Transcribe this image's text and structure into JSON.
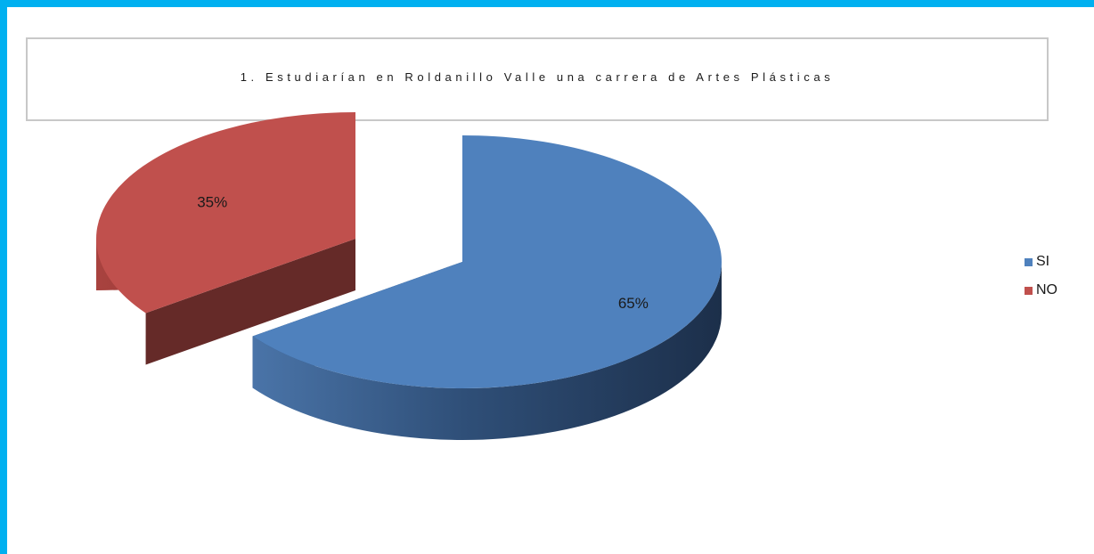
{
  "chart_data": {
    "type": "pie",
    "title": "1. Estudiarían en Roldanillo Valle una carrera de Artes Plásticas",
    "categories": [
      "SI",
      "NO"
    ],
    "values": [
      65,
      35
    ],
    "value_labels": [
      "65%",
      "35%"
    ],
    "colors": [
      "#4f81bd",
      "#c0504d"
    ],
    "legend_position": "right",
    "style": "3d-exploded"
  }
}
